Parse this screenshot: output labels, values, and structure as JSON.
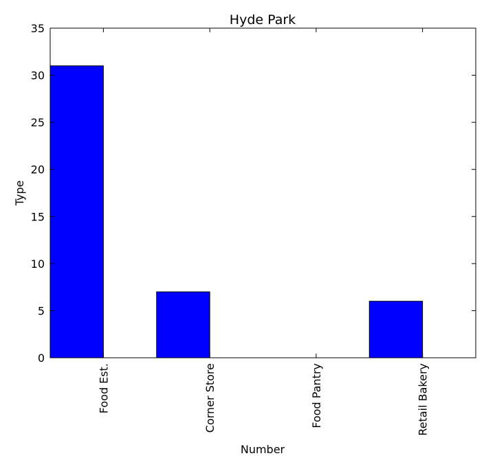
{
  "chart_data": {
    "type": "bar",
    "title": "Hyde Park",
    "xlabel": "Number",
    "ylabel": "Type",
    "categories": [
      "Food Est.",
      "Corner Store",
      "Food Pantry",
      "Retail Bakery"
    ],
    "values": [
      31,
      7,
      0,
      6
    ],
    "ylim": [
      0,
      35
    ],
    "yticks": [
      0,
      5,
      10,
      15,
      20,
      25,
      30,
      35
    ],
    "bar_color": "#0000ff",
    "grid": false,
    "legend": "none"
  }
}
